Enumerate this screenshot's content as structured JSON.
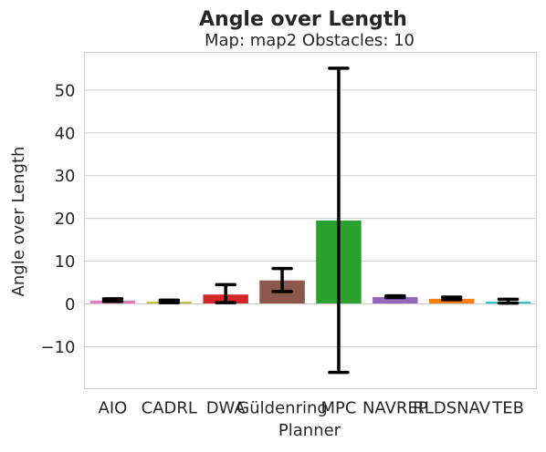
{
  "chart_data": {
    "type": "bar",
    "title": "Angle over Length",
    "subtitle": "Map: map2 Obstacles: 10",
    "xlabel": "Planner",
    "ylabel": "Angle over Length",
    "ylim": [
      -19.8,
      58.8
    ],
    "yticks": [
      -10,
      0,
      10,
      20,
      30,
      40,
      50
    ],
    "grid": "horizontal",
    "categories": [
      "AIO",
      "CADRL",
      "DWA",
      "Güldenring",
      "MPC",
      "NAVREP",
      "RLDSNAV",
      "TEB"
    ],
    "values": [
      0.8,
      0.5,
      2.2,
      5.5,
      19.5,
      1.6,
      1.2,
      0.5
    ],
    "error_low": [
      0.6,
      0.3,
      0.3,
      2.9,
      -16.0,
      1.5,
      1.0,
      0.2
    ],
    "error_high": [
      1.2,
      0.9,
      4.5,
      8.3,
      55.1,
      1.9,
      1.6,
      1.1
    ],
    "colors": [
      "#e377c2",
      "#bcbd22",
      "#d62728",
      "#8c564b",
      "#2ca02c",
      "#9467bd",
      "#ff7f0e",
      "#17becf"
    ]
  }
}
